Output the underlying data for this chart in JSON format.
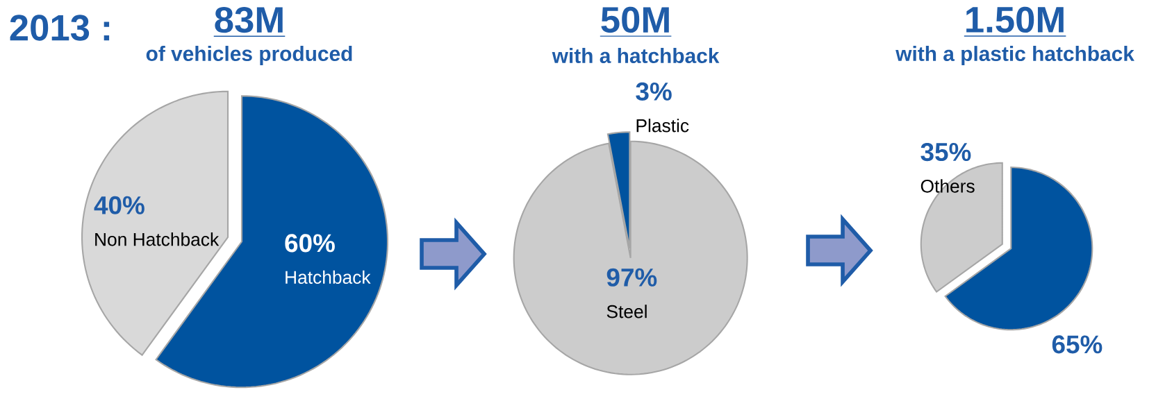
{
  "chart_data": [
    {
      "type": "pie",
      "title": "83M",
      "subtitle": "of vehicles produced",
      "annotations": [
        "2013 :"
      ],
      "categories": [
        "Hatchback",
        "Non Hatchback"
      ],
      "values": [
        60,
        40
      ],
      "colors": [
        "#00539f",
        "#d9d9d9"
      ],
      "value_labels": [
        "60%",
        "40%"
      ]
    },
    {
      "type": "pie",
      "title": "50M",
      "subtitle": "with a hatchback",
      "categories": [
        "Steel",
        "Plastic"
      ],
      "values": [
        97,
        3
      ],
      "colors": [
        "#cccccc",
        "#00539f"
      ],
      "value_labels": [
        "97%",
        "3%"
      ]
    },
    {
      "type": "pie",
      "title": "1.50M",
      "subtitle": "with a plastic hatchback",
      "categories": [
        null,
        "Others"
      ],
      "values": [
        65,
        35
      ],
      "colors": [
        "#00539f",
        "#cccccc"
      ],
      "value_labels": [
        "65%",
        "35%"
      ]
    }
  ]
}
